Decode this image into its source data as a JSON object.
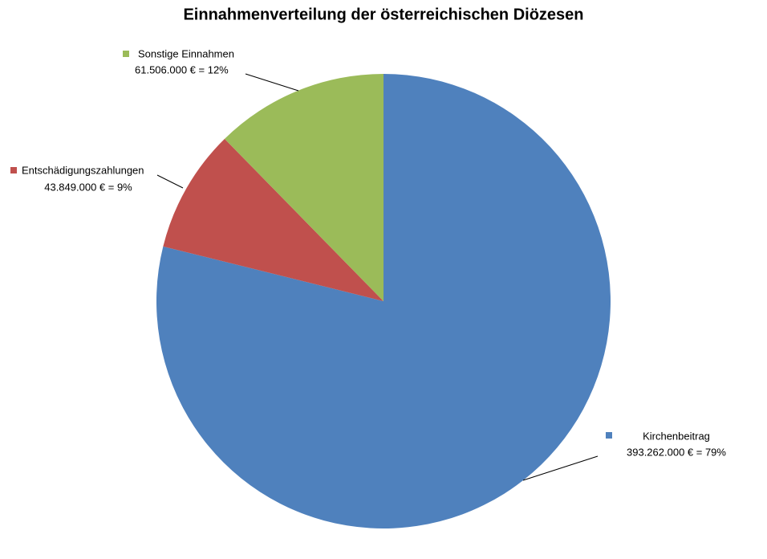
{
  "chart_data": {
    "type": "pie",
    "title": "Einnahmenverteilung der österreichischen Diözesen",
    "categories": [
      "Kirchenbeitrag",
      "Entschädigungszahlungen",
      "Sonstige Einnahmen"
    ],
    "values": [
      393262000,
      43849000,
      61506000
    ],
    "value_labels": [
      "393.262.000  €  = 79%",
      "43.849.000 €  = 9%",
      "61.506.000  €  = 12%"
    ],
    "colors": [
      "#4f81bd",
      "#c0504d",
      "#9bbb59"
    ]
  }
}
